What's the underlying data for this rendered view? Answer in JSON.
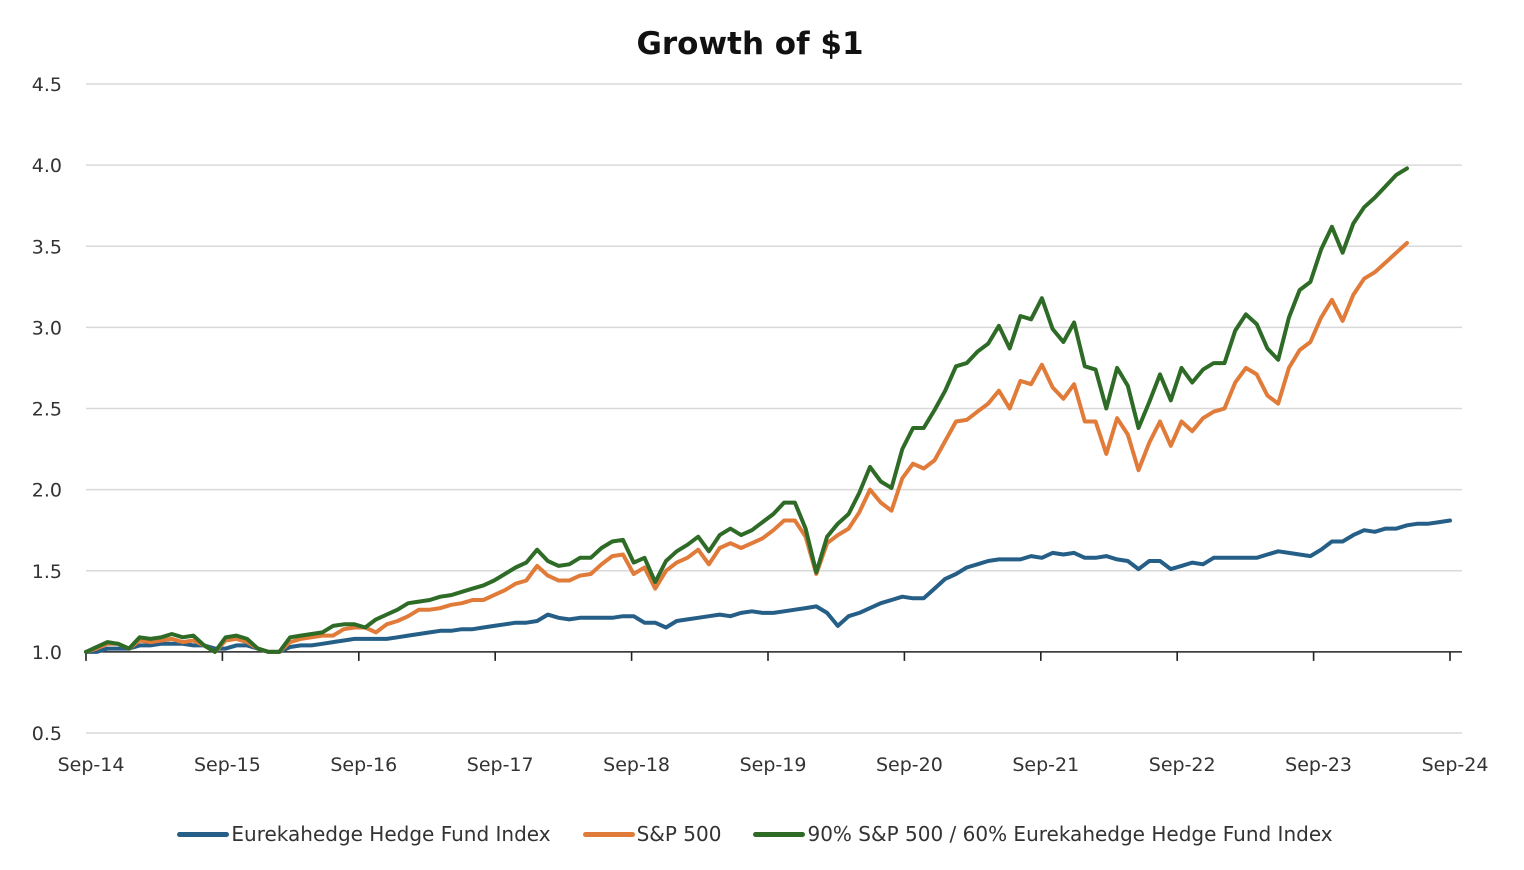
{
  "chart_data": {
    "type": "line",
    "title": "Growth of $1",
    "xlabel": "",
    "ylabel": "",
    "ylim": [
      0.5,
      4.5
    ],
    "yticks": [
      "0.5",
      "1.0",
      "1.5",
      "2.0",
      "2.5",
      "3.0",
      "3.5",
      "4.0",
      "4.5"
    ],
    "ytick_values": [
      0.5,
      1.0,
      1.5,
      2.0,
      2.5,
      3.0,
      3.5,
      4.0,
      4.5
    ],
    "xticks": [
      "Sep-14",
      "Sep-15",
      "Sep-16",
      "Sep-17",
      "Sep-18",
      "Sep-19",
      "Sep-20",
      "Sep-21",
      "Sep-22",
      "Sep-23",
      "Sep-24"
    ],
    "x_axis_crosses_at": 1.0,
    "grid": true,
    "legend_position": "bottom",
    "x_start": "Sep-14",
    "x_end": "Sep-24",
    "frequency": "monthly",
    "series": [
      {
        "name": "Eurekahedge Hedge Fund Index",
        "color": "#255e86",
        "values": [
          1.0,
          1.0,
          1.02,
          1.02,
          1.02,
          1.04,
          1.04,
          1.05,
          1.05,
          1.05,
          1.04,
          1.04,
          1.02,
          1.02,
          1.04,
          1.04,
          1.02,
          1.0,
          1.0,
          1.03,
          1.04,
          1.04,
          1.05,
          1.06,
          1.07,
          1.08,
          1.08,
          1.08,
          1.08,
          1.09,
          1.1,
          1.11,
          1.12,
          1.13,
          1.13,
          1.14,
          1.14,
          1.15,
          1.16,
          1.17,
          1.18,
          1.18,
          1.19,
          1.23,
          1.21,
          1.2,
          1.21,
          1.21,
          1.21,
          1.21,
          1.22,
          1.22,
          1.18,
          1.18,
          1.15,
          1.19,
          1.2,
          1.21,
          1.22,
          1.23,
          1.22,
          1.24,
          1.25,
          1.24,
          1.24,
          1.25,
          1.26,
          1.27,
          1.28,
          1.24,
          1.16,
          1.22,
          1.24,
          1.27,
          1.3,
          1.32,
          1.34,
          1.33,
          1.33,
          1.39,
          1.45,
          1.48,
          1.52,
          1.54,
          1.56,
          1.57,
          1.57,
          1.57,
          1.59,
          1.58,
          1.61,
          1.6,
          1.61,
          1.58,
          1.58,
          1.59,
          1.57,
          1.56,
          1.51,
          1.56,
          1.56,
          1.51,
          1.53,
          1.55,
          1.54,
          1.58,
          1.58,
          1.58,
          1.58,
          1.58,
          1.6,
          1.62,
          1.61,
          1.6,
          1.59,
          1.63,
          1.68,
          1.68,
          1.72,
          1.75,
          1.74,
          1.76,
          1.76,
          1.78,
          1.79,
          1.79,
          1.8,
          1.81
        ]
      },
      {
        "name": "S&P 500",
        "color": "#e07b39",
        "values": [
          1.0,
          1.02,
          1.05,
          1.05,
          1.02,
          1.07,
          1.06,
          1.07,
          1.08,
          1.06,
          1.07,
          1.04,
          1.0,
          1.07,
          1.08,
          1.06,
          1.02,
          1.0,
          1.0,
          1.06,
          1.08,
          1.09,
          1.1,
          1.1,
          1.14,
          1.15,
          1.15,
          1.12,
          1.17,
          1.19,
          1.22,
          1.26,
          1.26,
          1.27,
          1.29,
          1.3,
          1.32,
          1.32,
          1.35,
          1.38,
          1.42,
          1.44,
          1.53,
          1.47,
          1.44,
          1.44,
          1.47,
          1.48,
          1.54,
          1.59,
          1.6,
          1.48,
          1.52,
          1.39,
          1.5,
          1.55,
          1.58,
          1.63,
          1.54,
          1.64,
          1.67,
          1.64,
          1.67,
          1.7,
          1.75,
          1.81,
          1.81,
          1.71,
          1.48,
          1.67,
          1.72,
          1.76,
          1.86,
          2.0,
          1.92,
          1.87,
          2.07,
          2.16,
          2.13,
          2.18,
          2.3,
          2.42,
          2.43,
          2.48,
          2.53,
          2.61,
          2.5,
          2.67,
          2.65,
          2.77,
          2.63,
          2.56,
          2.65,
          2.42,
          2.42,
          2.22,
          2.44,
          2.34,
          2.12,
          2.29,
          2.42,
          2.27,
          2.42,
          2.36,
          2.44,
          2.48,
          2.5,
          2.66,
          2.75,
          2.71,
          2.58,
          2.53,
          2.75,
          2.86,
          2.91,
          3.06,
          3.17,
          3.04,
          3.2,
          3.3,
          3.34,
          3.4,
          3.46,
          3.52
        ]
      },
      {
        "name": "90% S&P 500 / 60% Eurekahedge Hedge Fund Index",
        "color": "#2e6b26",
        "values": [
          1.0,
          1.03,
          1.06,
          1.05,
          1.02,
          1.09,
          1.08,
          1.09,
          1.11,
          1.09,
          1.1,
          1.04,
          1.0,
          1.09,
          1.1,
          1.08,
          1.02,
          1.0,
          1.0,
          1.09,
          1.1,
          1.11,
          1.12,
          1.16,
          1.17,
          1.17,
          1.15,
          1.2,
          1.23,
          1.26,
          1.3,
          1.31,
          1.32,
          1.34,
          1.35,
          1.37,
          1.39,
          1.41,
          1.44,
          1.48,
          1.52,
          1.55,
          1.63,
          1.56,
          1.53,
          1.54,
          1.58,
          1.58,
          1.64,
          1.68,
          1.69,
          1.55,
          1.58,
          1.43,
          1.56,
          1.62,
          1.66,
          1.71,
          1.62,
          1.72,
          1.76,
          1.72,
          1.75,
          1.8,
          1.85,
          1.92,
          1.92,
          1.76,
          1.49,
          1.71,
          1.79,
          1.85,
          1.98,
          2.14,
          2.05,
          2.01,
          2.25,
          2.38,
          2.38,
          2.49,
          2.61,
          2.76,
          2.78,
          2.85,
          2.9,
          3.01,
          2.87,
          3.07,
          3.05,
          3.18,
          2.99,
          2.91,
          3.03,
          2.76,
          2.74,
          2.5,
          2.75,
          2.64,
          2.38,
          2.54,
          2.71,
          2.55,
          2.75,
          2.66,
          2.74,
          2.78,
          2.78,
          2.98,
          3.08,
          3.02,
          2.87,
          2.8,
          3.06,
          3.23,
          3.28,
          3.48,
          3.62,
          3.46,
          3.64,
          3.74,
          3.8,
          3.87,
          3.94,
          3.98
        ]
      }
    ]
  }
}
